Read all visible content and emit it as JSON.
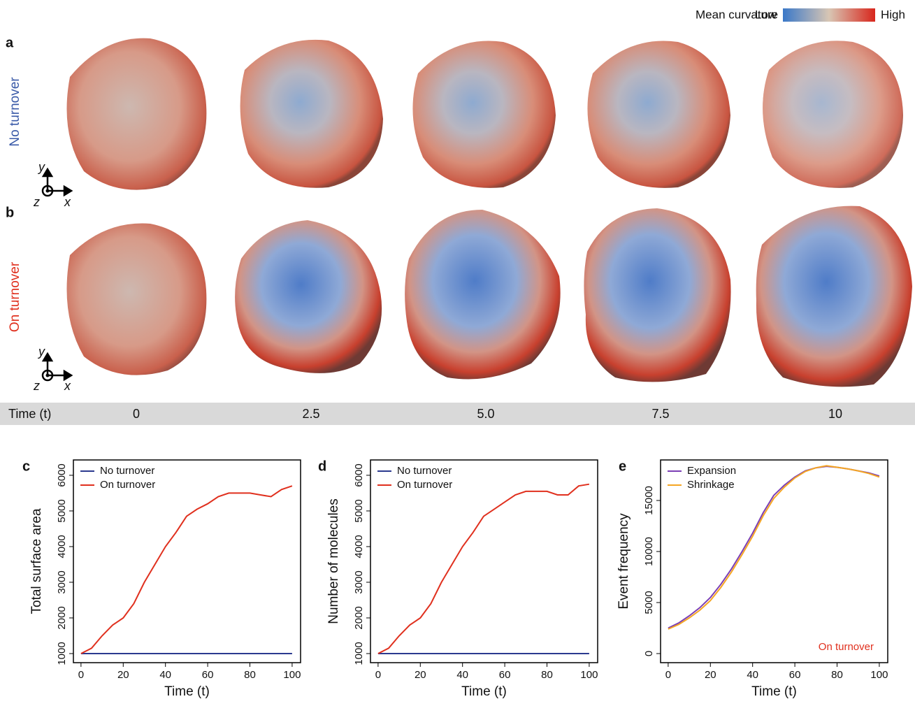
{
  "legend": {
    "title": "Mean curvature",
    "low": "Low",
    "high": "High"
  },
  "panels": {
    "a": "a",
    "b": "b",
    "c": "c",
    "d": "d",
    "e": "e"
  },
  "rows": [
    "No turnover",
    "On turnover"
  ],
  "axis_glyph": {
    "x": "x",
    "y": "y",
    "z": "z"
  },
  "time_row": {
    "label": "Time (t)",
    "times": [
      "0",
      "2.5",
      "5.0",
      "7.5",
      "10"
    ]
  },
  "chart_data": [
    {
      "type": "line",
      "ylabel": "Total surface area",
      "xlabel": "Time (t)",
      "x": [
        0,
        5,
        10,
        15,
        20,
        25,
        30,
        35,
        40,
        45,
        50,
        55,
        60,
        65,
        70,
        75,
        80,
        85,
        90,
        95,
        100
      ],
      "series": [
        {
          "name": "No turnover",
          "color": "#2b3a8f",
          "values": [
            1000,
            1000,
            1000,
            1000,
            1000,
            1000,
            1000,
            1000,
            1000,
            1000,
            1000,
            1000,
            1000,
            1000,
            1000,
            1000,
            1000,
            1000,
            1000,
            1000,
            1000
          ]
        },
        {
          "name": "On turnover",
          "color": "#e0301e",
          "values": [
            1000,
            1150,
            1500,
            1800,
            2000,
            2400,
            3000,
            3500,
            4000,
            4400,
            4850,
            5050,
            5200,
            5400,
            5500,
            5500,
            5500,
            5450,
            5400,
            5600,
            5700
          ]
        }
      ],
      "xlim": [
        -3.6,
        104
      ],
      "ylim": [
        745,
        6430
      ],
      "xticks": [
        0,
        20,
        40,
        60,
        80,
        100
      ],
      "yticks": [
        1000,
        2000,
        3000,
        4000,
        5000,
        6000
      ],
      "legend": "top-left"
    },
    {
      "type": "line",
      "ylabel": "Number of molecules",
      "xlabel": "Time (t)",
      "x": [
        0,
        5,
        10,
        15,
        20,
        25,
        30,
        35,
        40,
        45,
        50,
        55,
        60,
        65,
        70,
        75,
        80,
        85,
        90,
        95,
        100
      ],
      "series": [
        {
          "name": "No turnover",
          "color": "#2b3a8f",
          "values": [
            1000,
            1000,
            1000,
            1000,
            1000,
            1000,
            1000,
            1000,
            1000,
            1000,
            1000,
            1000,
            1000,
            1000,
            1000,
            1000,
            1000,
            1000,
            1000,
            1000,
            1000
          ]
        },
        {
          "name": "On turnover",
          "color": "#e0301e",
          "values": [
            1000,
            1150,
            1500,
            1800,
            2000,
            2400,
            3000,
            3500,
            4000,
            4400,
            4850,
            5050,
            5250,
            5450,
            5550,
            5550,
            5550,
            5450,
            5450,
            5700,
            5750
          ]
        }
      ],
      "xlim": [
        -3.6,
        104
      ],
      "ylim": [
        745,
        6430
      ],
      "xticks": [
        0,
        20,
        40,
        60,
        80,
        100
      ],
      "yticks": [
        1000,
        2000,
        3000,
        4000,
        5000,
        6000
      ],
      "legend": "top-left"
    },
    {
      "type": "line",
      "ylabel": "Event frequency",
      "xlabel": "Time (t)",
      "annotation": "On turnover",
      "x": [
        0,
        5,
        10,
        15,
        20,
        25,
        30,
        35,
        40,
        45,
        50,
        55,
        60,
        65,
        70,
        75,
        80,
        85,
        90,
        95,
        100
      ],
      "series": [
        {
          "name": "Expansion",
          "color": "#7b3fb5",
          "values": [
            2500,
            3000,
            3700,
            4500,
            5500,
            6800,
            8300,
            10000,
            11800,
            13800,
            15500,
            16500,
            17300,
            17900,
            18200,
            18350,
            18250,
            18100,
            17900,
            17700,
            17400
          ]
        },
        {
          "name": "Shrinkage",
          "color": "#f5a623",
          "values": [
            2400,
            2850,
            3500,
            4250,
            5200,
            6500,
            8000,
            9700,
            11500,
            13500,
            15200,
            16300,
            17200,
            17850,
            18200,
            18400,
            18250,
            18100,
            17900,
            17650,
            17300
          ]
        }
      ],
      "xlim": [
        -3.6,
        104
      ],
      "ylim": [
        -890,
        18970
      ],
      "xticks": [
        0,
        20,
        40,
        60,
        80,
        100
      ],
      "yticks": [
        0,
        5000,
        10000,
        15000
      ],
      "legend": "top-left"
    }
  ]
}
